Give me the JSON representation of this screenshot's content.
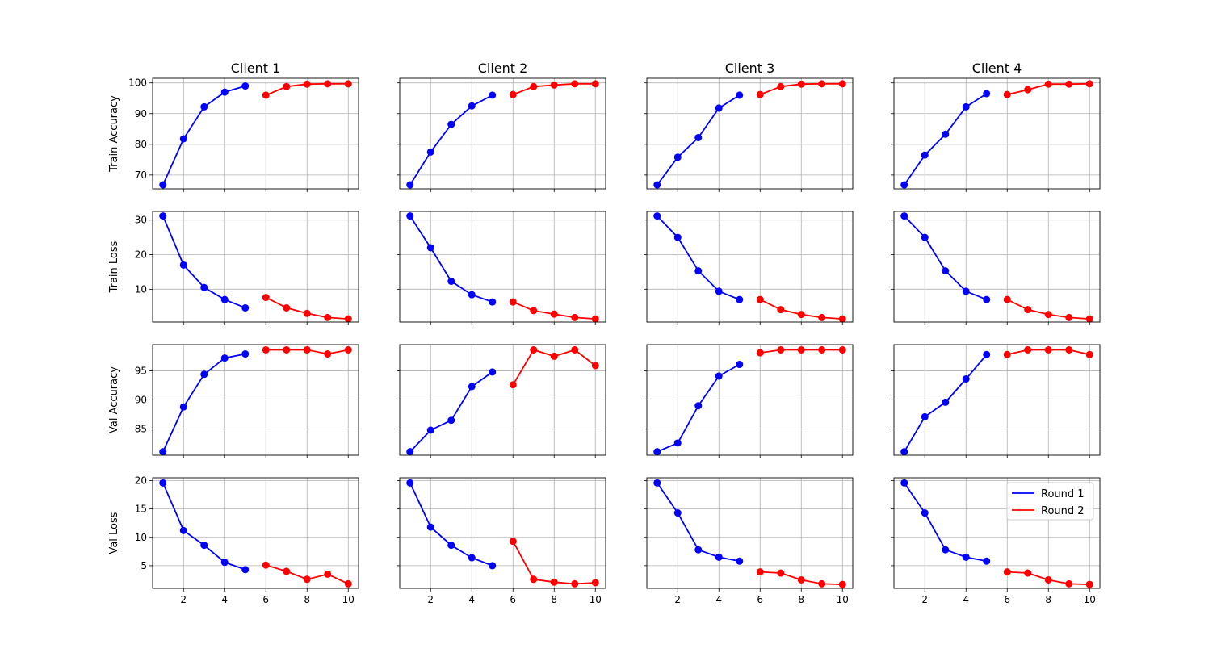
{
  "chart_data": {
    "type": "line",
    "grid": true,
    "legend": {
      "placement": "upper-right of bottom-right panel",
      "entries": [
        {
          "label": "Round 1",
          "color": "#0000ff"
        },
        {
          "label": "Round 2",
          "color": "#ff0000"
        }
      ]
    },
    "columns": [
      {
        "title": "Client 1"
      },
      {
        "title": "Client 2"
      },
      {
        "title": "Client 3"
      },
      {
        "title": "Client 4"
      }
    ],
    "rows": [
      {
        "ylabel": "Train Accuracy",
        "ylim": [
          65.5,
          101.5
        ],
        "yticks": [
          70,
          80,
          90,
          100
        ]
      },
      {
        "ylabel": "Train Loss",
        "ylim": [
          0.5,
          32.5
        ],
        "yticks": [
          10,
          20,
          30
        ]
      },
      {
        "ylabel": "Val Accuracy",
        "ylim": [
          80.5,
          99.5
        ],
        "yticks": [
          85,
          90,
          95
        ]
      },
      {
        "ylabel": "Val Loss",
        "ylim": [
          1.0,
          20.5
        ],
        "yticks": [
          5,
          10,
          15,
          20
        ]
      }
    ],
    "xlim": [
      0.5,
      10.5
    ],
    "xticks": [
      2,
      4,
      6,
      8,
      10
    ],
    "round1_x": [
      1,
      2,
      3,
      4,
      5
    ],
    "round2_x": [
      6,
      7,
      8,
      9,
      10
    ],
    "panels": [
      [
        {
          "round1": [
            66.8,
            81.8,
            92.2,
            97.0,
            99.0
          ],
          "round2": [
            96.0,
            98.8,
            99.6,
            99.7,
            99.7
          ]
        },
        {
          "round1": [
            66.8,
            77.5,
            86.5,
            92.5,
            96.0
          ],
          "round2": [
            96.2,
            98.8,
            99.3,
            99.7,
            99.7
          ]
        },
        {
          "round1": [
            66.8,
            75.8,
            82.2,
            91.8,
            96.0
          ],
          "round2": [
            96.2,
            98.8,
            99.6,
            99.7,
            99.7
          ]
        },
        {
          "round1": [
            66.8,
            76.5,
            83.3,
            92.2,
            96.5
          ],
          "round2": [
            96.2,
            97.8,
            99.6,
            99.6,
            99.7
          ]
        }
      ],
      [
        {
          "round1": [
            31.2,
            17.0,
            10.5,
            7.0,
            4.6
          ],
          "round2": [
            7.6,
            4.6,
            3.0,
            1.8,
            1.4
          ]
        },
        {
          "round1": [
            31.2,
            22.0,
            12.3,
            8.4,
            6.3
          ],
          "round2": [
            6.3,
            3.8,
            2.8,
            1.8,
            1.4
          ]
        },
        {
          "round1": [
            31.2,
            25.0,
            15.3,
            9.4,
            7.0
          ],
          "round2": [
            7.0,
            4.1,
            2.7,
            1.8,
            1.4
          ]
        },
        {
          "round1": [
            31.2,
            25.0,
            15.3,
            9.4,
            7.0
          ],
          "round2": [
            7.0,
            4.1,
            2.7,
            1.8,
            1.4
          ]
        }
      ],
      [
        {
          "round1": [
            81.1,
            88.8,
            94.4,
            97.2,
            97.9
          ],
          "round2": [
            98.6,
            98.6,
            98.6,
            97.9,
            98.6
          ]
        },
        {
          "round1": [
            81.1,
            84.8,
            86.5,
            92.3,
            94.8
          ],
          "round2": [
            92.6,
            98.6,
            97.5,
            98.6,
            95.9
          ]
        },
        {
          "round1": [
            81.1,
            82.6,
            89.0,
            94.1,
            96.1
          ],
          "round2": [
            98.1,
            98.6,
            98.6,
            98.6,
            98.6
          ]
        },
        {
          "round1": [
            81.1,
            87.1,
            89.6,
            93.6,
            97.8
          ],
          "round2": [
            97.8,
            98.6,
            98.6,
            98.6,
            97.8
          ]
        }
      ],
      [
        {
          "round1": [
            19.6,
            11.2,
            8.6,
            5.6,
            4.3
          ],
          "round2": [
            5.1,
            4.0,
            2.6,
            3.5,
            1.8
          ]
        },
        {
          "round1": [
            19.6,
            11.8,
            8.6,
            6.4,
            5.0
          ],
          "round2": [
            9.3,
            2.6,
            2.1,
            1.8,
            2.0
          ]
        },
        {
          "round1": [
            19.6,
            14.3,
            7.8,
            6.5,
            5.8
          ],
          "round2": [
            3.9,
            3.7,
            2.5,
            1.8,
            1.7
          ]
        },
        {
          "round1": [
            19.6,
            14.3,
            7.8,
            6.5,
            5.8
          ],
          "round2": [
            3.9,
            3.7,
            2.5,
            1.8,
            1.7
          ]
        }
      ]
    ]
  }
}
